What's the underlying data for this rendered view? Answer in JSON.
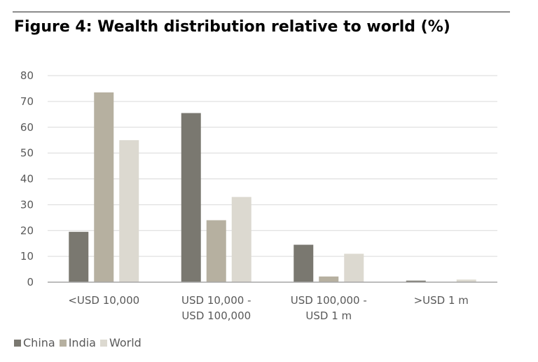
{
  "chart_data": {
    "type": "bar",
    "title": "Figure 4: Wealth distribution relative to world (%)",
    "categories": [
      [
        "<USD 10,000"
      ],
      [
        "USD 10,000 -",
        "USD 100,000"
      ],
      [
        "USD 100,000 -",
        "USD 1 m"
      ],
      [
        ">USD 1 m"
      ]
    ],
    "series": [
      {
        "name": "China",
        "color": "#7a7870",
        "values": [
          19.5,
          65.5,
          14.5,
          0.6
        ]
      },
      {
        "name": "India",
        "color": "#b6b0a0",
        "values": [
          73.5,
          24,
          2.2,
          0.1
        ]
      },
      {
        "name": "World",
        "color": "#dcd9d0",
        "values": [
          55,
          33,
          11,
          1
        ]
      }
    ],
    "y_ticks": [
      "0",
      "10",
      "20",
      "30",
      "40",
      "50",
      "60",
      "70",
      "80"
    ],
    "ylim": [
      0,
      80
    ],
    "grid": true,
    "legend_position": "bottom-left"
  }
}
